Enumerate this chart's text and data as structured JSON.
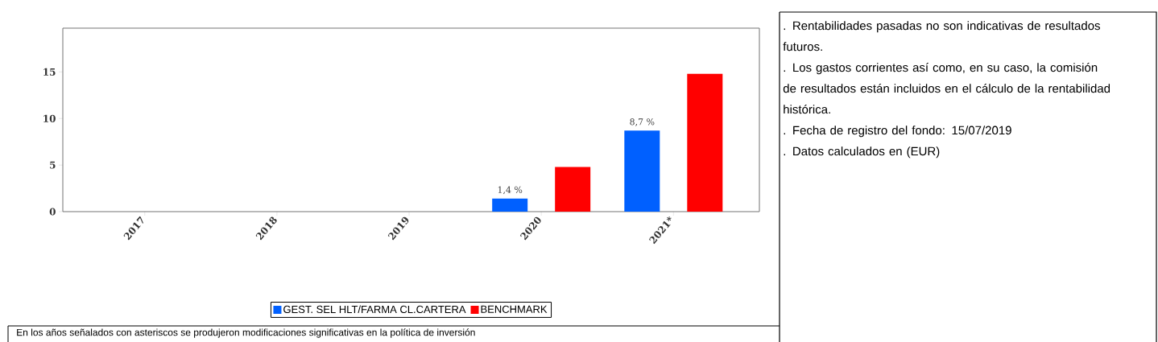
{
  "chart_data": {
    "type": "bar",
    "categories": [
      "2017",
      "2018",
      "2019",
      "2020",
      "2021*"
    ],
    "series": [
      {
        "name": "GEST. SEL HLT/FARMA CL.CARTERA",
        "color": "#0060ff",
        "values": [
          null,
          null,
          null,
          1.4,
          8.7
        ],
        "value_labels": [
          null,
          null,
          null,
          "1,4 %",
          "8,7 %"
        ]
      },
      {
        "name": "BENCHMARK",
        "color": "#ff0000",
        "values": [
          null,
          null,
          null,
          4.8,
          14.8
        ]
      }
    ],
    "ylim": [
      0,
      19.7
    ],
    "yticks": [
      0,
      5,
      10,
      15
    ],
    "legend": "bottom",
    "annotations": [
      ". Rentabilidades pasadas no son indicativas de resultados futuros.",
      ". Los gastos corrientes así como, en su caso, la comisión de resultados están incluidos en el cálculo de la rentabilidad histórica.",
      ". Fecha de registro del fondo: 15/07/2019",
      ". Datos calculados en (EUR)",
      "En los años señalados con asteriscos se produjeron modificaciones significativas en la política de inversión"
    ]
  }
}
